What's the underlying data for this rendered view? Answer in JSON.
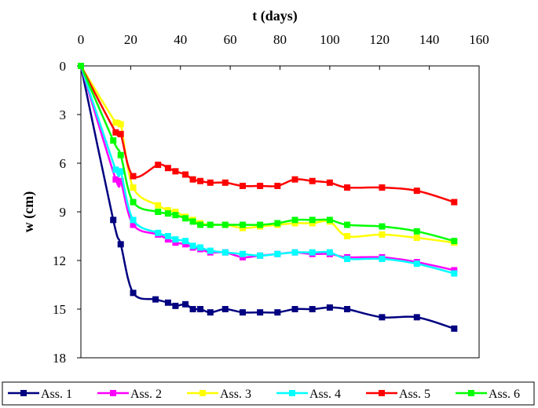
{
  "chart_data": {
    "type": "line",
    "xlabel": "t (days)",
    "ylabel": "w (cm)",
    "xlim": [
      0,
      160
    ],
    "ylim": [
      0,
      18
    ],
    "y_inverted": true,
    "x_axis_position": "top",
    "x_ticks": [
      "0",
      "20",
      "40",
      "60",
      "80",
      "100",
      "120",
      "140",
      "160"
    ],
    "y_ticks": [
      "0",
      "3",
      "6",
      "9",
      "12",
      "15",
      "18"
    ],
    "grid": false,
    "legend_position": "bottom",
    "series": [
      {
        "name": "Ass. 1",
        "color": "#000080",
        "x": [
          0,
          13,
          16,
          21,
          30,
          35,
          38,
          42,
          45,
          48,
          52,
          58,
          65,
          72,
          79,
          86,
          93,
          100,
          107,
          121,
          135,
          150
        ],
        "y": [
          0,
          9.5,
          11.0,
          14.0,
          14.4,
          14.6,
          14.8,
          14.7,
          15.0,
          15.0,
          15.2,
          15.0,
          15.2,
          15.2,
          15.2,
          15.0,
          15.0,
          14.9,
          15.0,
          15.5,
          15.5,
          16.2
        ]
      },
      {
        "name": "Ass. 2",
        "color": "#ff00ff",
        "x": [
          0,
          14,
          16,
          21,
          31,
          35,
          38,
          42,
          45,
          48,
          52,
          58,
          65,
          72,
          79,
          86,
          93,
          100,
          107,
          121,
          135,
          150
        ],
        "y": [
          0,
          7.0,
          7.1,
          9.8,
          10.4,
          10.7,
          10.9,
          11.0,
          11.2,
          11.3,
          11.5,
          11.5,
          11.8,
          11.7,
          11.6,
          11.5,
          11.6,
          11.6,
          11.8,
          11.8,
          12.1,
          12.6
        ]
      },
      {
        "name": "Ass. 3",
        "color": "#ffff00",
        "x": [
          0,
          14,
          16,
          21,
          31,
          35,
          38,
          42,
          45,
          48,
          52,
          58,
          65,
          72,
          79,
          86,
          93,
          100,
          107,
          121,
          135,
          150
        ],
        "y": [
          0,
          3.5,
          3.6,
          7.5,
          8.6,
          8.9,
          9.0,
          9.3,
          9.5,
          9.7,
          9.8,
          9.8,
          10.0,
          9.9,
          9.8,
          9.7,
          9.7,
          9.6,
          10.5,
          10.4,
          10.6,
          10.9
        ]
      },
      {
        "name": "Ass. 4",
        "color": "#00ffff",
        "x": [
          0,
          14,
          16,
          21,
          31,
          35,
          38,
          42,
          45,
          48,
          52,
          58,
          65,
          72,
          79,
          86,
          93,
          100,
          107,
          121,
          135,
          150
        ],
        "y": [
          0,
          6.4,
          6.5,
          9.5,
          10.3,
          10.5,
          10.7,
          10.8,
          11.1,
          11.2,
          11.4,
          11.5,
          11.6,
          11.7,
          11.6,
          11.5,
          11.5,
          11.5,
          11.9,
          11.9,
          12.2,
          12.8
        ]
      },
      {
        "name": "Ass. 5",
        "color": "#ff0000",
        "x": [
          0,
          14,
          16,
          21,
          31,
          35,
          38,
          42,
          45,
          48,
          52,
          58,
          65,
          72,
          79,
          86,
          93,
          100,
          107,
          121,
          135,
          150
        ],
        "y": [
          0,
          4.1,
          4.2,
          6.8,
          6.1,
          6.3,
          6.5,
          6.7,
          7.0,
          7.1,
          7.2,
          7.2,
          7.4,
          7.4,
          7.4,
          7.0,
          7.1,
          7.2,
          7.5,
          7.5,
          7.7,
          8.4
        ]
      },
      {
        "name": "Ass. 6",
        "color": "#00ff00",
        "x": [
          0,
          13,
          16,
          21,
          31,
          35,
          38,
          42,
          45,
          48,
          52,
          58,
          65,
          72,
          79,
          86,
          93,
          100,
          107,
          121,
          135,
          150
        ],
        "y": [
          0,
          4.6,
          5.5,
          8.4,
          9.0,
          9.1,
          9.2,
          9.4,
          9.6,
          9.8,
          9.8,
          9.8,
          9.8,
          9.8,
          9.7,
          9.5,
          9.5,
          9.5,
          9.8,
          9.9,
          10.2,
          10.8
        ]
      }
    ]
  }
}
